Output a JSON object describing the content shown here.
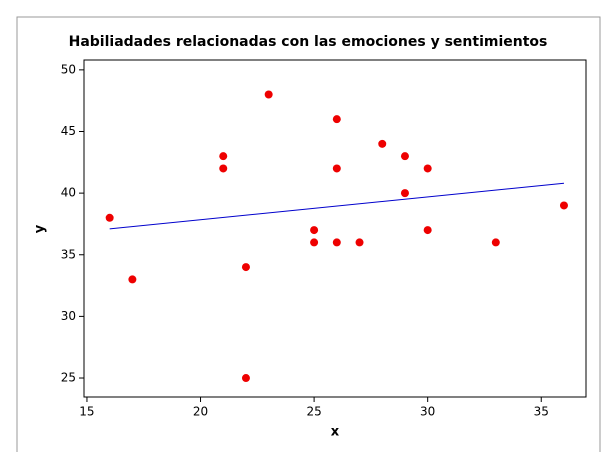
{
  "chart_data": {
    "type": "scatter",
    "title": "Habiliadades relacionadas con las emociones y sentimientos",
    "xlabel": "x",
    "ylabel": "y",
    "x": [
      16,
      17,
      21,
      21,
      22,
      22,
      23,
      25,
      25,
      26,
      26,
      26,
      27,
      28,
      29,
      29,
      30,
      30,
      33,
      36
    ],
    "values": [
      38,
      33,
      43,
      42,
      34,
      25,
      48,
      37,
      36,
      46,
      42,
      36,
      36,
      44,
      43,
      40,
      42,
      37,
      36,
      39
    ],
    "color": "#ee0000",
    "fit": {
      "x": [
        16,
        36
      ],
      "values": [
        37.1,
        40.8
      ],
      "color": "#0000cc"
    },
    "xlim": [
      14.87,
      36.97
    ],
    "xticks": [
      15,
      20,
      25,
      30,
      35
    ],
    "ylim": [
      23.46,
      50.8
    ],
    "yticks": [
      25,
      30,
      35,
      40,
      45,
      50
    ]
  }
}
